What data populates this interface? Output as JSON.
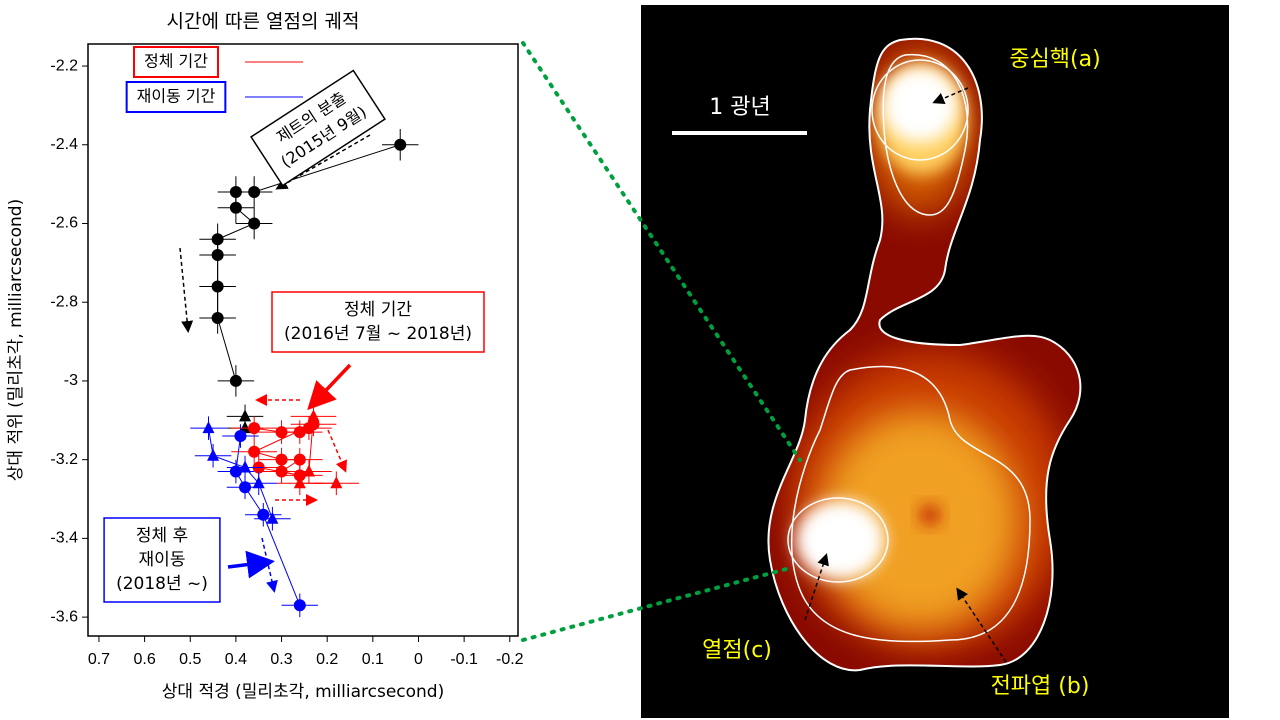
{
  "chart_data": {
    "type": "scatter",
    "title": "시간에 따른 열점의 궤적",
    "x_label": "상대 적경 (밀리초각, milliarcsecond)",
    "y_label": "상대 적위 (밀리초각, milliarcsecond)",
    "xlim": [
      0.724,
      -0.218
    ],
    "ylim": [
      -3.648,
      -2.144
    ],
    "xticks": [
      0.7,
      0.6,
      0.5,
      0.4,
      0.3,
      0.2,
      0.1,
      0,
      -0.1,
      -0.2
    ],
    "yticks": [
      -2.2,
      -2.4,
      -2.6,
      -2.8,
      -3,
      -3.2,
      -3.4,
      -3.6
    ],
    "series": [
      {
        "color": "#000000",
        "marker": "circle",
        "xerr": 0.04,
        "yerr": 0.04,
        "x": [
          0.04,
          0.36,
          0.4,
          0.4,
          0.36,
          0.44,
          0.44,
          0.44,
          0.44,
          0.4
        ],
        "values": [
          -2.4,
          -2.52,
          -2.52,
          -2.56,
          -2.6,
          -2.64,
          -2.68,
          -2.76,
          -2.84,
          -3.0
        ]
      },
      {
        "color": "#000000",
        "marker": "triangle",
        "xerr": 0.04,
        "yerr": 0.03,
        "x": [
          0.38,
          0.38
        ],
        "values": [
          -3.09,
          -3.12
        ]
      },
      {
        "name": "정체 기간",
        "color": "#ff0000",
        "marker": "circle",
        "xerr": 0.05,
        "yerr": 0.03,
        "x": [
          0.36,
          0.3,
          0.26,
          0.24,
          0.23,
          0.36,
          0.3,
          0.26,
          0.3,
          0.26,
          0.35
        ],
        "values": [
          -3.12,
          -3.13,
          -3.13,
          -3.12,
          -3.11,
          -3.18,
          -3.2,
          -3.2,
          -3.23,
          -3.24,
          -3.22
        ]
      },
      {
        "color": "#ff0000",
        "marker": "triangle",
        "xerr": 0.05,
        "yerr": 0.03,
        "x": [
          0.23,
          0.24,
          0.26,
          0.18
        ],
        "values": [
          -3.09,
          -3.23,
          -3.26,
          -3.26
        ]
      },
      {
        "name": "재이동 기간",
        "color": "#0000ff",
        "marker": "circle",
        "xerr": 0.04,
        "yerr": 0.03,
        "x": [
          0.39,
          0.4,
          0.38,
          0.34,
          0.26
        ],
        "values": [
          -3.14,
          -3.23,
          -3.27,
          -3.34,
          -3.57
        ]
      },
      {
        "color": "#0000ff",
        "marker": "triangle",
        "xerr": 0.04,
        "yerr": 0.03,
        "x": [
          0.46,
          0.45,
          0.38,
          0.35,
          0.32
        ],
        "values": [
          -3.12,
          -3.19,
          -3.22,
          -3.26,
          -3.35
        ]
      }
    ],
    "annotations": [
      {
        "color": "#000000",
        "lines": [
          "제트의 분출",
          "(2015년 9월)"
        ]
      },
      {
        "color": "#ff0000",
        "lines": [
          "정체 기간",
          "(2016년 7월 ~ 2018년)"
        ]
      },
      {
        "color": "#0000ff",
        "lines": [
          "정체 후",
          "재이동",
          "(2018년 ~)"
        ]
      }
    ]
  },
  "image": {
    "scale_label": "1 광년",
    "labels": [
      "중심핵(a)",
      "전파엽 (b)",
      "열점(c)"
    ]
  }
}
